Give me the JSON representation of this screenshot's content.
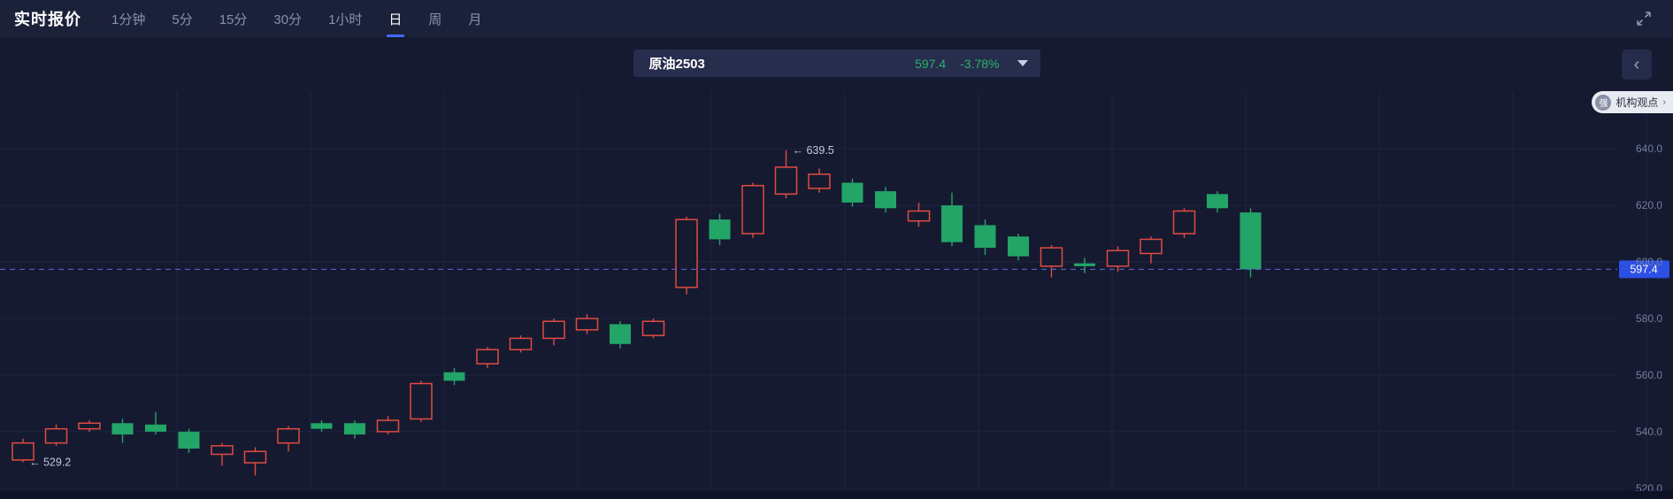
{
  "header": {
    "title": "实时报价",
    "tabs": [
      {
        "label": "1分钟",
        "active": false
      },
      {
        "label": "5分",
        "active": false
      },
      {
        "label": "15分",
        "active": false
      },
      {
        "label": "30分",
        "active": false
      },
      {
        "label": "1小时",
        "active": false
      },
      {
        "label": "日",
        "active": true
      },
      {
        "label": "周",
        "active": false
      },
      {
        "label": "月",
        "active": false
      }
    ]
  },
  "symbol_bar": {
    "name": "原油2503",
    "price": "597.4",
    "change": "-3.78%"
  },
  "side": {
    "collapse_icon": "‹",
    "institution_badge": {
      "icon_text": "强",
      "label": "机构观点",
      "arrow": "›"
    }
  },
  "chart_data": {
    "type": "candlestick",
    "title": "原油2503 日K线",
    "current_price": 597.4,
    "current_price_label": "597.4",
    "change_pct": -3.78,
    "y_axis": {
      "min": 519,
      "max": 646,
      "ticks": [
        640,
        620,
        600,
        580,
        560,
        540,
        520
      ]
    },
    "v_gridlines": [
      200,
      351,
      502,
      653,
      804,
      955,
      1106,
      1257,
      1408,
      1559,
      1710,
      1861
    ],
    "annotations": [
      {
        "text": "← 639.5",
        "price": 639.5,
        "candle_index": 23
      },
      {
        "text": "← 529.2",
        "price": 529.2,
        "candle_index": 0
      }
    ],
    "colors": {
      "up": "#e14b41",
      "down": "#23a567",
      "price_line": "#5b6ad0",
      "price_tag_bg": "#2c4fe4",
      "grid": "#1e2442",
      "axis_text": "#747e9e",
      "annotation_text": "#c3c9de",
      "bg": "#151a31"
    },
    "candles": [
      [
        530.0,
        537.5,
        529.2,
        536.0
      ],
      [
        536.0,
        542.5,
        535.0,
        541.0
      ],
      [
        541.0,
        544.0,
        540.0,
        543.0
      ],
      [
        543.0,
        544.5,
        536.0,
        539.0
      ],
      [
        542.5,
        547.0,
        539.0,
        540.0
      ],
      [
        540.0,
        541.0,
        532.5,
        534.0
      ],
      [
        532.0,
        536.0,
        528.0,
        535.0
      ],
      [
        529.0,
        534.5,
        524.5,
        533.0
      ],
      [
        536.0,
        542.0,
        533.0,
        541.0
      ],
      [
        543.0,
        544.0,
        540.0,
        541.0
      ],
      [
        543.0,
        544.0,
        537.5,
        539.0
      ],
      [
        540.0,
        545.5,
        539.0,
        544.0
      ],
      [
        544.5,
        558.0,
        543.5,
        557.0
      ],
      [
        561.0,
        562.5,
        556.5,
        558.0
      ],
      [
        564.0,
        570.0,
        562.5,
        569.0
      ],
      [
        569.0,
        574.0,
        568.0,
        573.0
      ],
      [
        573.0,
        580.0,
        570.5,
        579.0
      ],
      [
        576.0,
        581.5,
        574.5,
        580.0
      ],
      [
        578.0,
        579.0,
        569.5,
        571.0
      ],
      [
        574.0,
        580.0,
        573.0,
        579.0
      ],
      [
        591.0,
        616.0,
        588.5,
        615.0
      ],
      [
        615.0,
        617.0,
        606.0,
        608.0
      ],
      [
        610.0,
        628.0,
        608.5,
        627.0
      ],
      [
        624.0,
        639.5,
        622.5,
        633.5
      ],
      [
        626.0,
        633.0,
        624.5,
        631.0
      ],
      [
        628.0,
        629.5,
        619.5,
        621.0
      ],
      [
        625.0,
        626.5,
        617.5,
        619.0
      ],
      [
        614.5,
        621.0,
        612.5,
        618.0
      ],
      [
        620.0,
        624.5,
        605.5,
        607.0
      ],
      [
        613.0,
        615.0,
        602.5,
        605.0
      ],
      [
        609.0,
        610.0,
        600.5,
        602.0
      ],
      [
        598.5,
        606.0,
        594.5,
        605.0
      ],
      [
        599.5,
        601.5,
        596.0,
        598.5
      ],
      [
        598.5,
        605.5,
        596.5,
        604.0
      ],
      [
        603.0,
        609.0,
        599.5,
        608.0
      ],
      [
        610.0,
        619.0,
        608.5,
        618.0
      ],
      [
        624.0,
        625.0,
        617.5,
        619.0
      ],
      [
        617.5,
        619.0,
        594.5,
        597.4
      ]
    ]
  }
}
